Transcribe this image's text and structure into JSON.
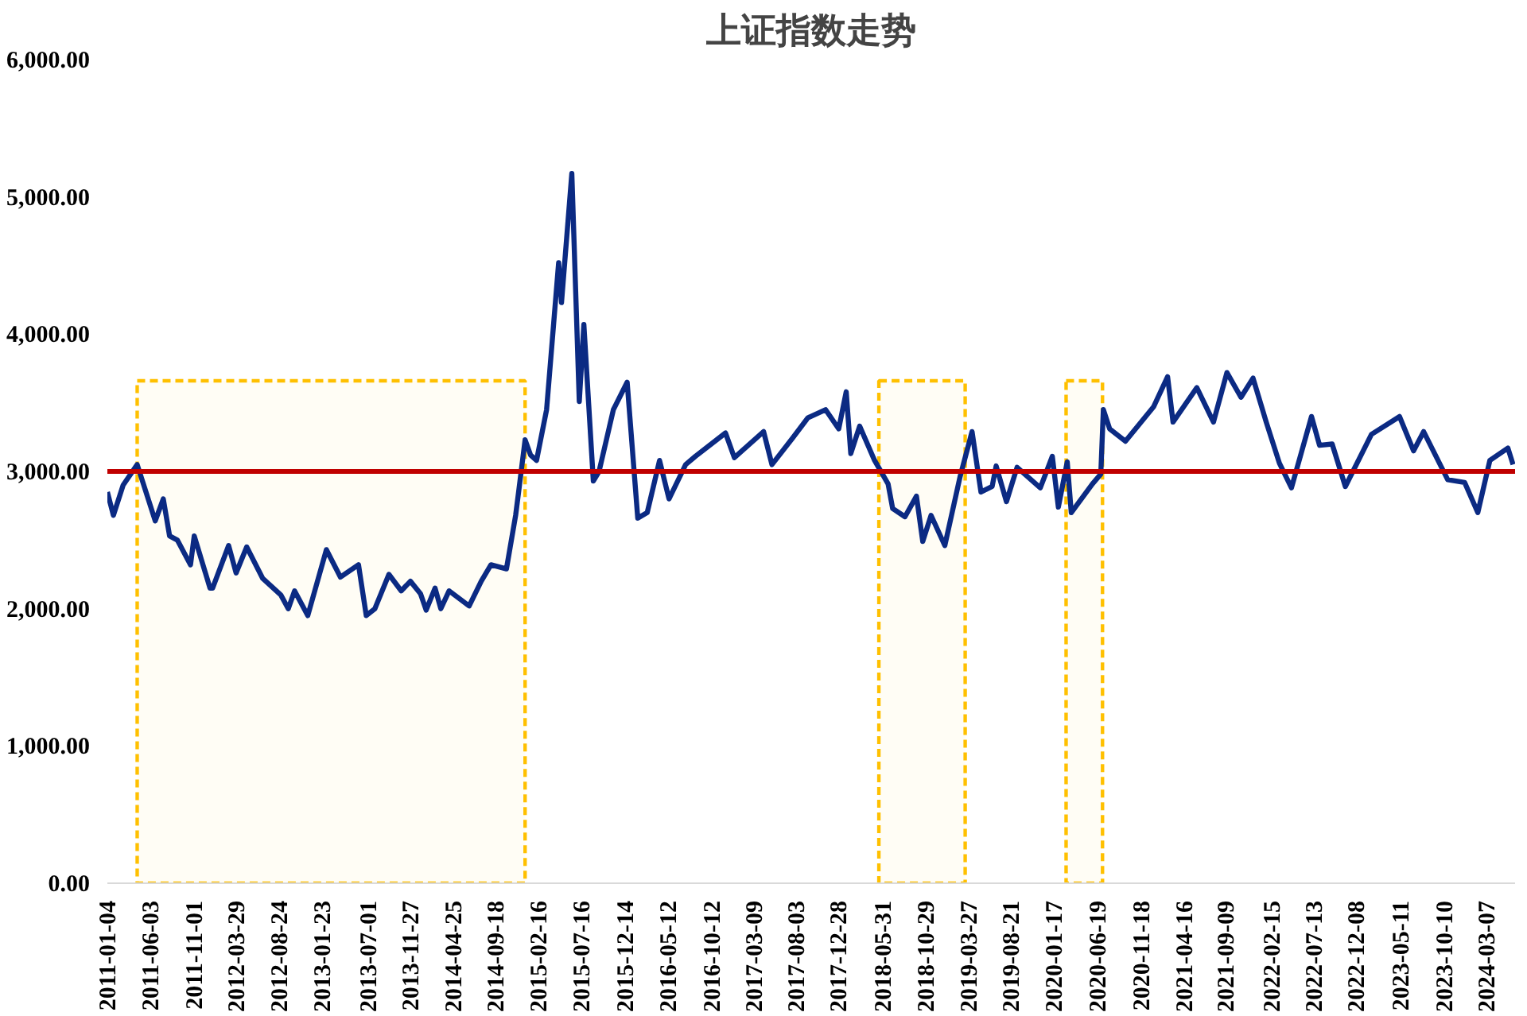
{
  "chart_data": {
    "type": "line",
    "title": "上证指数走势",
    "x": [
      "2011-01-04",
      "2011-01-25",
      "2011-02-28",
      "2011-04-18",
      "2011-06-20",
      "2011-07-18",
      "2011-08-09",
      "2011-09-05",
      "2011-10-21",
      "2011-11-03",
      "2011-12-28",
      "2012-01-06",
      "2012-03-02",
      "2012-03-28",
      "2012-05-04",
      "2012-06-29",
      "2012-08-31",
      "2012-09-26",
      "2012-10-18",
      "2012-12-03",
      "2013-02-06",
      "2013-03-27",
      "2013-05-29",
      "2013-06-25",
      "2013-07-25",
      "2013-09-12",
      "2013-10-25",
      "2013-11-26",
      "2013-12-31",
      "2014-01-20",
      "2014-02-20",
      "2014-03-12",
      "2014-04-10",
      "2014-06-19",
      "2014-07-31",
      "2014-09-03",
      "2014-10-27",
      "2014-11-28",
      "2014-12-09",
      "2014-12-31",
      "2015-01-19",
      "2015-02-09",
      "2015-03-16",
      "2015-04-27",
      "2015-05-07",
      "2015-06-12",
      "2015-07-08",
      "2015-07-24",
      "2015-08-26",
      "2015-09-15",
      "2015-11-04",
      "2015-12-22",
      "2016-01-28",
      "2016-03-01",
      "2016-04-13",
      "2016-05-16",
      "2016-07-13",
      "2016-08-16",
      "2016-11-29",
      "2016-12-30",
      "2017-04-11",
      "2017-05-10",
      "2017-07-20",
      "2017-09-12",
      "2017-11-13",
      "2017-12-29",
      "2018-01-24",
      "2018-02-09",
      "2018-03-12",
      "2018-05-03",
      "2018-06-19",
      "2018-07-05",
      "2018-08-17",
      "2018-09-26",
      "2018-10-18",
      "2018-11-16",
      "2019-01-03",
      "2019-02-25",
      "2019-04-08",
      "2019-05-09",
      "2019-06-17",
      "2019-07-01",
      "2019-08-06",
      "2019-09-12",
      "2019-12-02",
      "2020-01-13",
      "2020-02-03",
      "2020-03-05",
      "2020-03-19",
      "2020-06-01",
      "2020-06-30",
      "2020-07-09",
      "2020-07-31",
      "2020-09-24",
      "2020-12-31",
      "2021-02-18",
      "2021-03-09",
      "2021-05-31",
      "2021-07-28",
      "2021-09-13",
      "2021-11-01",
      "2021-12-13",
      "2022-01-28",
      "2022-03-15",
      "2022-04-26",
      "2022-07-05",
      "2022-08-02",
      "2022-09-15",
      "2022-10-31",
      "2023-01-30",
      "2023-05-08",
      "2023-06-26",
      "2023-07-31",
      "2023-10-23",
      "2023-12-21",
      "2024-02-05",
      "2024-03-18",
      "2024-05-20",
      "2024-06-07"
    ],
    "series": [
      {
        "color": "#0b2a83",
        "values": [
          2850,
          2680,
          2900,
          3050,
          2640,
          2800,
          2530,
          2500,
          2320,
          2530,
          2150,
          2150,
          2460,
          2260,
          2450,
          2220,
          2100,
          2000,
          2130,
          1950,
          2430,
          2230,
          2320,
          1950,
          2000,
          2250,
          2130,
          2200,
          2110,
          1990,
          2150,
          2000,
          2130,
          2020,
          2200,
          2320,
          2290,
          2680,
          2860,
          3230,
          3120,
          3080,
          3450,
          4520,
          4230,
          5170,
          3510,
          4070,
          2930,
          3000,
          3450,
          3650,
          2660,
          2700,
          3080,
          2800,
          3050,
          3110,
          3280,
          3100,
          3290,
          3050,
          3240,
          3390,
          3450,
          3310,
          3580,
          3130,
          3330,
          3080,
          2910,
          2730,
          2670,
          2820,
          2490,
          2680,
          2460,
          2960,
          3290,
          2850,
          2890,
          3040,
          2780,
          3030,
          2880,
          3110,
          2740,
          3070,
          2700,
          2910,
          2980,
          3450,
          3310,
          3220,
          3470,
          3690,
          3360,
          3610,
          3360,
          3720,
          3540,
          3680,
          3360,
          3060,
          2880,
          3400,
          3190,
          3200,
          2890,
          3270,
          3400,
          3150,
          3290,
          2940,
          2920,
          2700,
          3080,
          3170,
          3050
        ]
      }
    ],
    "xlim": [
      "2011-01-04",
      "2024-06-14"
    ],
    "xticks": [
      "2011-01-04",
      "2011-06-03",
      "2011-11-01",
      "2012-03-29",
      "2012-08-24",
      "2013-01-23",
      "2013-07-01",
      "2013-11-27",
      "2014-04-25",
      "2014-09-18",
      "2015-02-16",
      "2015-07-16",
      "2015-12-14",
      "2016-05-12",
      "2016-10-12",
      "2017-03-09",
      "2017-08-03",
      "2017-12-28",
      "2018-05-31",
      "2018-10-29",
      "2019-03-27",
      "2019-08-21",
      "2020-01-17",
      "2020-06-19",
      "2020-11-18",
      "2021-04-16",
      "2021-09-09",
      "2022-02-15",
      "2022-07-13",
      "2022-12-08",
      "2023-05-11",
      "2023-10-10",
      "2024-03-07"
    ],
    "ylim": [
      0,
      6000
    ],
    "yticks": [
      {
        "value": 0,
        "label": "0.00"
      },
      {
        "value": 1000,
        "label": "1,000.00"
      },
      {
        "value": 2000,
        "label": "2,000.00"
      },
      {
        "value": 3000,
        "label": "3,000.00"
      },
      {
        "value": 4000,
        "label": "4,000.00"
      },
      {
        "value": 5000,
        "label": "5,000.00"
      },
      {
        "value": 6000,
        "label": "6,000.00"
      }
    ],
    "ref_lines": [
      {
        "axis": "y",
        "value": 3000,
        "color": "#c00000"
      }
    ],
    "bands": [
      {
        "axis": "x",
        "from": "2011-04-18",
        "to": "2014-12-31",
        "color": "#ffc000"
      },
      {
        "axis": "x",
        "from": "2018-05-18",
        "to": "2019-03-15",
        "color": "#ffc000"
      },
      {
        "axis": "x",
        "from": "2020-03-01",
        "to": "2020-07-06",
        "color": "#ffc000"
      }
    ],
    "grid": false,
    "marker": "none",
    "line_style": "solid"
  }
}
